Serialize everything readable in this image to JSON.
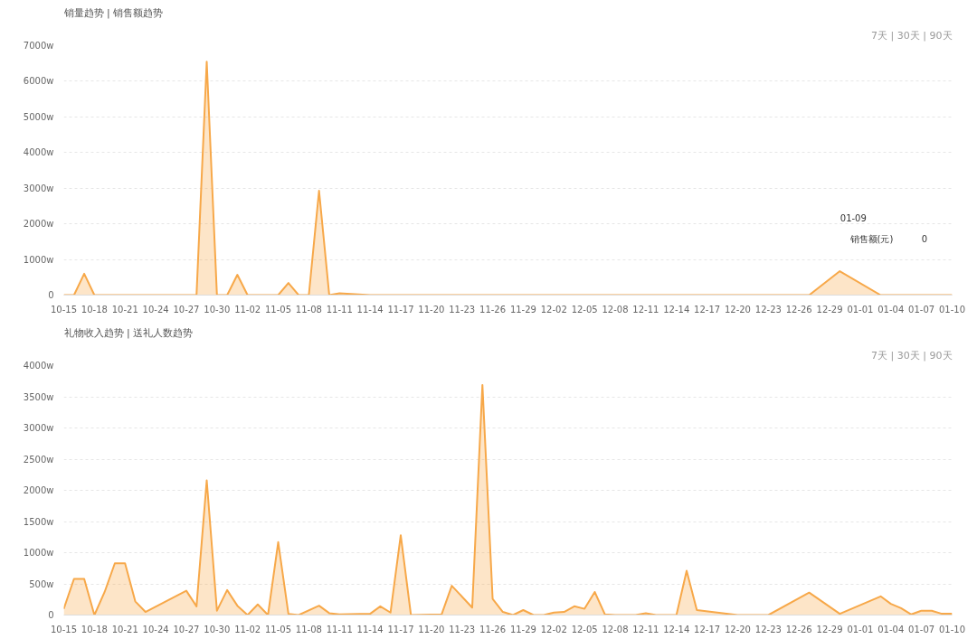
{
  "chart_data": [
    {
      "type": "area",
      "title": "销量趋势 | 销售额趋势",
      "annotations": [
        "7天 | 30天 | 90天",
        "01-09",
        "销售额(元)",
        "0"
      ],
      "categories": [
        "10-15",
        null,
        null,
        "10-18",
        null,
        null,
        "10-21",
        null,
        null,
        "10-24",
        null,
        null,
        "10-27",
        null,
        null,
        "10-30",
        null,
        null,
        "11-02",
        null,
        null,
        "11-05",
        null,
        null,
        "11-08",
        null,
        null,
        "11-11",
        null,
        null,
        "11-14",
        null,
        null,
        "11-17",
        null,
        null,
        "11-20",
        null,
        null,
        "11-23",
        null,
        null,
        "11-26",
        null,
        null,
        "11-29",
        null,
        null,
        "12-02",
        null,
        null,
        "12-05",
        null,
        null,
        "12-08",
        null,
        null,
        "12-11",
        null,
        null,
        "12-14",
        null,
        null,
        "12-17",
        null,
        null,
        "12-20",
        null,
        null,
        "12-23",
        null,
        null,
        "12-26",
        null,
        null,
        "12-29",
        null,
        null,
        "01-01",
        null,
        null,
        "01-04",
        null,
        null,
        "01-07",
        null,
        null,
        "01-10"
      ],
      "series": [
        {
          "color": "#f7a849",
          "values": [
            0,
            0,
            600,
            0,
            0,
            0,
            0,
            0,
            0,
            0,
            0,
            0,
            0,
            0,
            6550,
            0,
            0,
            570,
            0,
            0,
            0,
            0,
            340,
            0,
            0,
            2930,
            0,
            50,
            null,
            null,
            0,
            0,
            0,
            0,
            0,
            0,
            0,
            0,
            0,
            0,
            0,
            0,
            0,
            0,
            0,
            0,
            0,
            0,
            0,
            0,
            0,
            0,
            0,
            0,
            0,
            0,
            0,
            0,
            0,
            0,
            0,
            0,
            0,
            0,
            0,
            0,
            0,
            0,
            0,
            0,
            0,
            0,
            0,
            0,
            null,
            null,
            670,
            null,
            null,
            null,
            0,
            0,
            0,
            0,
            0,
            0,
            0,
            0
          ]
        }
      ],
      "ylim": [
        0,
        7000
      ],
      "yticks": [
        0,
        {
          "value": 1000,
          "label": "1000w"
        },
        {
          "value": 2000,
          "label": "2000w"
        },
        {
          "value": 3000,
          "label": "3000w"
        },
        {
          "value": 4000,
          "label": "4000w"
        },
        {
          "value": 5000,
          "label": "5000w"
        },
        {
          "value": 6000,
          "label": "6000w"
        },
        {
          "value": 7000,
          "label": "7000w"
        }
      ],
      "grid": "y"
    },
    {
      "type": "area",
      "title": "礼物收入趋势 | 送礼人数趋势",
      "annotations": [
        "7天 | 30天 | 90天"
      ],
      "categories": [
        "10-15",
        null,
        null,
        "10-18",
        null,
        null,
        "10-21",
        null,
        null,
        "10-24",
        null,
        null,
        "10-27",
        null,
        null,
        "10-30",
        null,
        null,
        "11-02",
        null,
        null,
        "11-05",
        null,
        null,
        "11-08",
        null,
        null,
        "11-11",
        null,
        null,
        "11-14",
        null,
        null,
        "11-17",
        null,
        null,
        "11-20",
        null,
        null,
        "11-23",
        null,
        null,
        "11-26",
        null,
        null,
        "11-29",
        null,
        null,
        "12-02",
        null,
        null,
        "12-05",
        null,
        null,
        "12-08",
        null,
        null,
        "12-11",
        null,
        null,
        "12-14",
        null,
        null,
        "12-17",
        null,
        null,
        "12-20",
        null,
        null,
        "12-23",
        null,
        null,
        "12-26",
        null,
        null,
        "12-29",
        null,
        null,
        "01-01",
        null,
        null,
        "01-04",
        null,
        null,
        "01-07",
        null,
        null,
        "01-10"
      ],
      "series": [
        {
          "color": "#f7a849",
          "values": [
            100,
            580,
            580,
            0,
            370,
            830,
            830,
            220,
            50,
            null,
            null,
            null,
            390,
            140,
            2160,
            70,
            400,
            150,
            0,
            170,
            0,
            1170,
            20,
            0,
            null,
            150,
            30,
            10,
            null,
            null,
            20,
            140,
            40,
            1280,
            0,
            null,
            null,
            10,
            470,
            null,
            120,
            3690,
            260,
            50,
            0,
            80,
            0,
            0,
            40,
            50,
            140,
            100,
            370,
            10,
            0,
            0,
            0,
            30,
            0,
            0,
            0,
            710,
            80,
            null,
            null,
            null,
            0,
            0,
            0,
            0,
            null,
            null,
            null,
            360,
            null,
            null,
            20,
            null,
            null,
            null,
            300,
            180,
            110,
            10,
            70,
            70,
            20,
            20
          ]
        }
      ],
      "ylim": [
        0,
        4000
      ],
      "yticks": [
        0,
        {
          "value": 500,
          "label": "500w"
        },
        {
          "value": 1000,
          "label": "1000w"
        },
        {
          "value": 1500,
          "label": "1500w"
        },
        {
          "value": 2000,
          "label": "2000w"
        },
        {
          "value": 2500,
          "label": "2500w"
        },
        {
          "value": 3000,
          "label": "3000w"
        },
        {
          "value": 3500,
          "label": "3500w"
        },
        {
          "value": 4000,
          "label": "4000w"
        }
      ],
      "grid": "y"
    }
  ]
}
